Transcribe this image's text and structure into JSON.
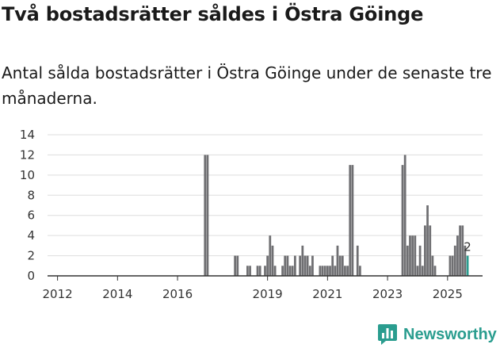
{
  "title": "Två bostadsrätter såldes i Östra Göinge",
  "subtitle": "Antal sålda bostadsrätter i Östra Göinge under de senaste tre månaderna.",
  "brand": {
    "name": "Newsworthy",
    "icon": "bar-chart-logo-icon"
  },
  "colors": {
    "bar": "#6f6f72",
    "highlight": "#2a9d8f",
    "grid": "#dddddd",
    "axis": "#333333"
  },
  "chart_data": {
    "type": "bar",
    "title": "Två bostadsrätter såldes i Östra Göinge",
    "xlabel": "",
    "ylabel": "",
    "ylim": [
      0,
      14
    ],
    "y_ticks": [
      0,
      2,
      4,
      6,
      8,
      10,
      12,
      14
    ],
    "x_range": [
      2011.667,
      2026.167
    ],
    "x_tick_labels": [
      "2012",
      "2014",
      "2016",
      "2019",
      "2021",
      "2023",
      "2025"
    ],
    "x_tick_values": [
      2012,
      2014,
      2016,
      2019,
      2021,
      2023,
      2025
    ],
    "bar_width_years": 0.083,
    "x": [
      2016.917,
      2017.0,
      2017.917,
      2018.0,
      2018.333,
      2018.417,
      2018.667,
      2018.75,
      2018.917,
      2019.0,
      2019.083,
      2019.167,
      2019.25,
      2019.5,
      2019.583,
      2019.667,
      2019.75,
      2019.833,
      2019.917,
      2020.083,
      2020.167,
      2020.25,
      2020.333,
      2020.417,
      2020.5,
      2020.75,
      2020.833,
      2020.917,
      2021.0,
      2021.083,
      2021.167,
      2021.25,
      2021.333,
      2021.417,
      2021.5,
      2021.583,
      2021.667,
      2021.75,
      2021.833,
      2022.0,
      2022.083,
      2023.5,
      2023.583,
      2023.667,
      2023.75,
      2023.833,
      2023.917,
      2024.0,
      2024.083,
      2024.167,
      2024.25,
      2024.333,
      2024.417,
      2024.5,
      2024.583,
      2025.083,
      2025.167,
      2025.25,
      2025.333,
      2025.417,
      2025.5,
      2025.583,
      2025.667
    ],
    "values": [
      12,
      12,
      2,
      2,
      1,
      1,
      1,
      1,
      1,
      2,
      4,
      3,
      1,
      1,
      2,
      2,
      1,
      1,
      2,
      2,
      3,
      2,
      2,
      1,
      2,
      1,
      1,
      1,
      1,
      1,
      2,
      1,
      3,
      2,
      2,
      1,
      1,
      11,
      11,
      3,
      1,
      11,
      12,
      3,
      4,
      4,
      4,
      1,
      3,
      1,
      5,
      7,
      5,
      2,
      1,
      2,
      2,
      3,
      4,
      5,
      5,
      3,
      2
    ],
    "highlight_index": 62,
    "data_labels": [
      {
        "index": 62,
        "text": "2"
      }
    ]
  }
}
